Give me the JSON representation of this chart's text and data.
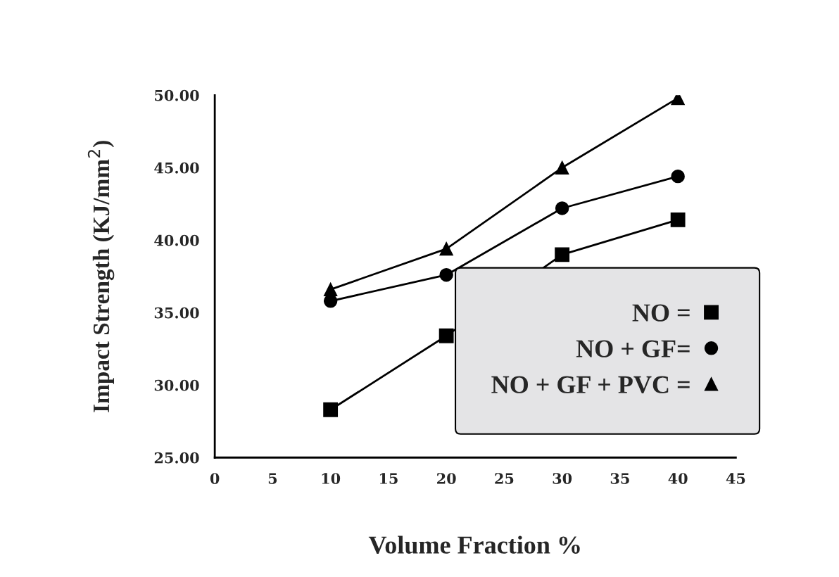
{
  "chart_data": {
    "type": "line",
    "xlabel": "Volume Fraction %",
    "ylabel": "Impact Strength (KJ/mm$^{2}$)",
    "x": [
      10,
      20,
      30,
      40
    ],
    "series": [
      {
        "name": "NO =",
        "color": "#000000",
        "marker": "square",
        "values": [
          28.3,
          33.4,
          39.0,
          41.4
        ]
      },
      {
        "name": "NO + GF=",
        "color": "#000000",
        "marker": "circle",
        "values": [
          35.8,
          37.6,
          42.2,
          44.4
        ]
      },
      {
        "name": "NO + GF + PVC =",
        "color": "#000000",
        "marker": "triangle",
        "values": [
          36.6,
          39.4,
          45.0,
          49.8
        ]
      }
    ],
    "xlim": [
      0,
      45
    ],
    "xticks": [
      0,
      5,
      10,
      15,
      20,
      25,
      30,
      35,
      40,
      45
    ],
    "ylim": [
      25,
      50
    ],
    "yticks": [
      {
        "value": 25,
        "label": "25.00"
      },
      {
        "value": 30,
        "label": "30.00"
      },
      {
        "value": 35,
        "label": "35.00"
      },
      {
        "value": 40,
        "label": "40.00"
      },
      {
        "value": 45,
        "label": "45.00"
      },
      {
        "value": 50,
        "label": "50.00"
      }
    ],
    "grid": false,
    "legend": "bottom right",
    "line_style": "solid"
  }
}
